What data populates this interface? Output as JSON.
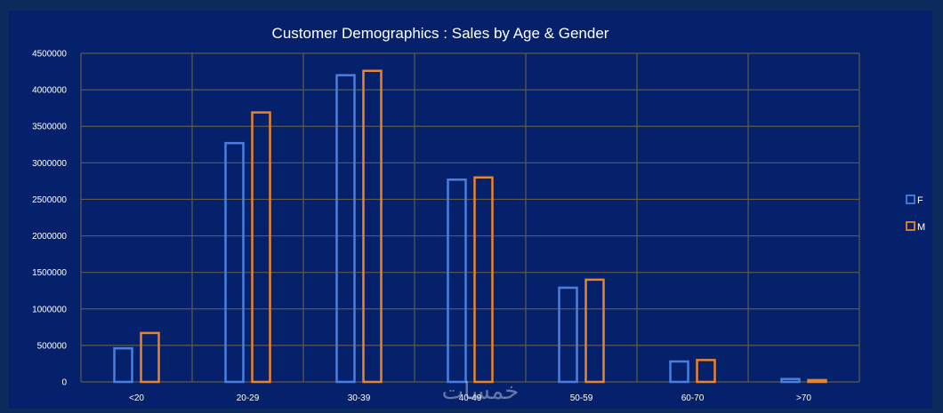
{
  "chart_data": {
    "type": "bar",
    "title": "Customer Demographics : Sales by Age & Gender",
    "categories": [
      "<20",
      "20-29",
      "30-39",
      "40-49",
      "50-59",
      "60-70",
      ">70"
    ],
    "series": [
      {
        "name": "F",
        "values": [
          460000,
          3270000,
          4200000,
          2770000,
          1290000,
          280000,
          40000
        ]
      },
      {
        "name": "M",
        "values": [
          670000,
          3690000,
          4260000,
          2800000,
          1400000,
          300000,
          25000
        ]
      }
    ],
    "ylim": [
      0,
      4500000
    ],
    "yticks": [
      "0",
      "500000",
      "1000000",
      "1500000",
      "2000000",
      "2500000",
      "3000000",
      "3500000",
      "4000000",
      "4500000"
    ],
    "grid": true,
    "legend_position": "right"
  },
  "colors": {
    "F": "#4a7fe0",
    "M": "#e8852a",
    "grid": "#5f5a4a",
    "background": "#05216b"
  },
  "watermark": "خمسات"
}
